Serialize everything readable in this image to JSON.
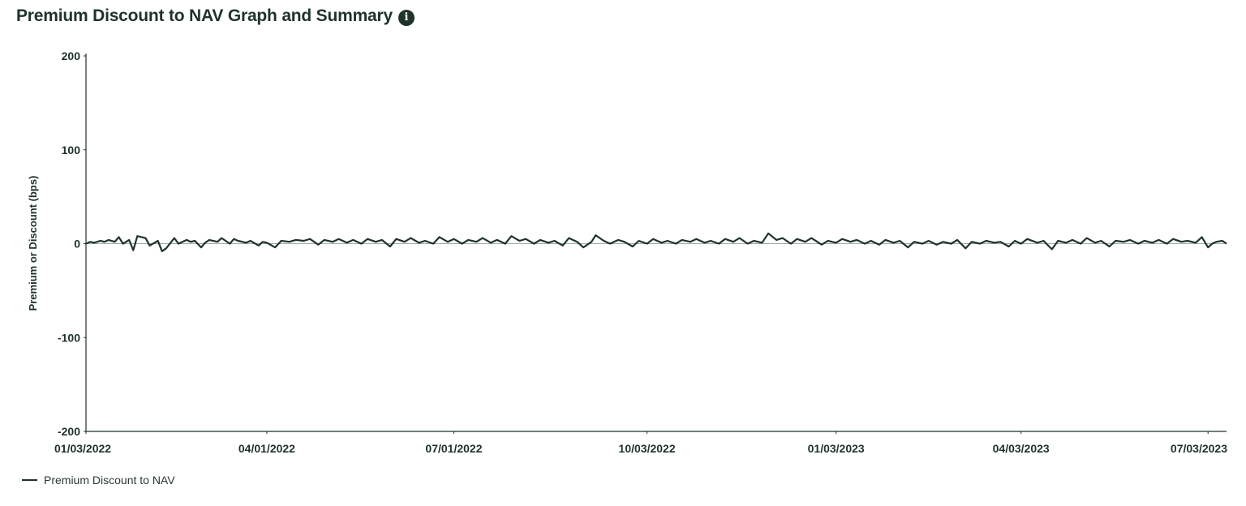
{
  "header": {
    "title": "Premium Discount to NAV Graph and Summary",
    "info_icon": "info-icon"
  },
  "colors": {
    "text": "#1f3329",
    "series_line": "#1f3329",
    "axis": "#1f3329",
    "zero_line": "#9aa7a0"
  },
  "legend": {
    "label": "Premium Discount to NAV"
  },
  "chart_data": {
    "type": "line",
    "ylabel": "Premium or Discount (bps)",
    "ylim": [
      -200,
      200
    ],
    "yticks": [
      "200",
      "100",
      "0",
      "-100",
      "-200"
    ],
    "xlim": [
      "2022-01-03",
      "2023-07-12"
    ],
    "xticks": [
      {
        "label": "01/03/2022",
        "date": "2022-01-03"
      },
      {
        "label": "04/01/2022",
        "date": "2022-04-01"
      },
      {
        "label": "07/01/2022",
        "date": "2022-07-01"
      },
      {
        "label": "10/03/2022",
        "date": "2022-10-03"
      },
      {
        "label": "01/03/2023",
        "date": "2023-01-03"
      },
      {
        "label": "04/03/2023",
        "date": "2023-04-03"
      },
      {
        "label": "07/03/2023",
        "date": "2023-07-03"
      }
    ],
    "grid": false,
    "legend_position": "bottom-left",
    "series": [
      {
        "name": "Premium Discount to NAV",
        "points": [
          [
            "2022-01-03",
            0
          ],
          [
            "2022-01-05",
            2
          ],
          [
            "2022-01-07",
            1
          ],
          [
            "2022-01-10",
            3
          ],
          [
            "2022-01-12",
            2
          ],
          [
            "2022-01-14",
            4
          ],
          [
            "2022-01-17",
            2
          ],
          [
            "2022-01-19",
            7
          ],
          [
            "2022-01-21",
            0
          ],
          [
            "2022-01-24",
            4
          ],
          [
            "2022-01-26",
            -7
          ],
          [
            "2022-01-28",
            8
          ],
          [
            "2022-02-01",
            6
          ],
          [
            "2022-02-03",
            -2
          ],
          [
            "2022-02-07",
            3
          ],
          [
            "2022-02-09",
            -8
          ],
          [
            "2022-02-11",
            -5
          ],
          [
            "2022-02-15",
            6
          ],
          [
            "2022-02-17",
            0
          ],
          [
            "2022-02-21",
            4
          ],
          [
            "2022-02-23",
            2
          ],
          [
            "2022-02-25",
            3
          ],
          [
            "2022-02-28",
            -4
          ],
          [
            "2022-03-02",
            1
          ],
          [
            "2022-03-04",
            4
          ],
          [
            "2022-03-08",
            2
          ],
          [
            "2022-03-10",
            6
          ],
          [
            "2022-03-14",
            0
          ],
          [
            "2022-03-16",
            5
          ],
          [
            "2022-03-18",
            3
          ],
          [
            "2022-03-22",
            1
          ],
          [
            "2022-03-24",
            3
          ],
          [
            "2022-03-28",
            -2
          ],
          [
            "2022-03-30",
            2
          ],
          [
            "2022-04-01",
            1
          ],
          [
            "2022-04-05",
            -4
          ],
          [
            "2022-04-08",
            3
          ],
          [
            "2022-04-12",
            2
          ],
          [
            "2022-04-15",
            4
          ],
          [
            "2022-04-19",
            3
          ],
          [
            "2022-04-22",
            5
          ],
          [
            "2022-04-26",
            -1
          ],
          [
            "2022-04-29",
            4
          ],
          [
            "2022-05-03",
            2
          ],
          [
            "2022-05-06",
            5
          ],
          [
            "2022-05-10",
            1
          ],
          [
            "2022-05-13",
            4
          ],
          [
            "2022-05-17",
            0
          ],
          [
            "2022-05-20",
            5
          ],
          [
            "2022-05-24",
            2
          ],
          [
            "2022-05-27",
            4
          ],
          [
            "2022-05-31",
            -3
          ],
          [
            "2022-06-03",
            5
          ],
          [
            "2022-06-07",
            2
          ],
          [
            "2022-06-10",
            6
          ],
          [
            "2022-06-14",
            1
          ],
          [
            "2022-06-17",
            3
          ],
          [
            "2022-06-21",
            0
          ],
          [
            "2022-06-24",
            7
          ],
          [
            "2022-06-28",
            2
          ],
          [
            "2022-07-01",
            5
          ],
          [
            "2022-07-05",
            0
          ],
          [
            "2022-07-08",
            4
          ],
          [
            "2022-07-12",
            2
          ],
          [
            "2022-07-15",
            6
          ],
          [
            "2022-07-19",
            1
          ],
          [
            "2022-07-22",
            4
          ],
          [
            "2022-07-26",
            0
          ],
          [
            "2022-07-29",
            8
          ],
          [
            "2022-08-02",
            3
          ],
          [
            "2022-08-05",
            5
          ],
          [
            "2022-08-09",
            0
          ],
          [
            "2022-08-12",
            4
          ],
          [
            "2022-08-16",
            1
          ],
          [
            "2022-08-19",
            3
          ],
          [
            "2022-08-23",
            -2
          ],
          [
            "2022-08-26",
            6
          ],
          [
            "2022-08-30",
            2
          ],
          [
            "2022-09-02",
            -4
          ],
          [
            "2022-09-06",
            2
          ],
          [
            "2022-09-08",
            9
          ],
          [
            "2022-09-12",
            3
          ],
          [
            "2022-09-15",
            0
          ],
          [
            "2022-09-19",
            4
          ],
          [
            "2022-09-22",
            2
          ],
          [
            "2022-09-26",
            -3
          ],
          [
            "2022-09-29",
            3
          ],
          [
            "2022-10-03",
            0
          ],
          [
            "2022-10-06",
            5
          ],
          [
            "2022-10-10",
            1
          ],
          [
            "2022-10-13",
            3
          ],
          [
            "2022-10-17",
            0
          ],
          [
            "2022-10-20",
            4
          ],
          [
            "2022-10-24",
            2
          ],
          [
            "2022-10-27",
            5
          ],
          [
            "2022-10-31",
            1
          ],
          [
            "2022-11-03",
            3
          ],
          [
            "2022-11-07",
            0
          ],
          [
            "2022-11-10",
            5
          ],
          [
            "2022-11-14",
            2
          ],
          [
            "2022-11-17",
            6
          ],
          [
            "2022-11-21",
            0
          ],
          [
            "2022-11-24",
            3
          ],
          [
            "2022-11-28",
            1
          ],
          [
            "2022-12-01",
            11
          ],
          [
            "2022-12-05",
            4
          ],
          [
            "2022-12-08",
            6
          ],
          [
            "2022-12-12",
            0
          ],
          [
            "2022-12-15",
            5
          ],
          [
            "2022-12-19",
            2
          ],
          [
            "2022-12-22",
            6
          ],
          [
            "2022-12-27",
            -1
          ],
          [
            "2022-12-30",
            3
          ],
          [
            "2023-01-03",
            1
          ],
          [
            "2023-01-06",
            5
          ],
          [
            "2023-01-10",
            2
          ],
          [
            "2023-01-13",
            4
          ],
          [
            "2023-01-17",
            0
          ],
          [
            "2023-01-20",
            3
          ],
          [
            "2023-01-24",
            -1
          ],
          [
            "2023-01-27",
            4
          ],
          [
            "2023-01-31",
            1
          ],
          [
            "2023-02-03",
            3
          ],
          [
            "2023-02-07",
            -4
          ],
          [
            "2023-02-10",
            2
          ],
          [
            "2023-02-14",
            0
          ],
          [
            "2023-02-17",
            3
          ],
          [
            "2023-02-21",
            -1
          ],
          [
            "2023-02-24",
            2
          ],
          [
            "2023-02-28",
            0
          ],
          [
            "2023-03-03",
            4
          ],
          [
            "2023-03-07",
            -5
          ],
          [
            "2023-03-10",
            2
          ],
          [
            "2023-03-14",
            0
          ],
          [
            "2023-03-17",
            3
          ],
          [
            "2023-03-21",
            1
          ],
          [
            "2023-03-24",
            2
          ],
          [
            "2023-03-28",
            -3
          ],
          [
            "2023-03-31",
            3
          ],
          [
            "2023-04-03",
            0
          ],
          [
            "2023-04-06",
            5
          ],
          [
            "2023-04-11",
            1
          ],
          [
            "2023-04-14",
            3
          ],
          [
            "2023-04-18",
            -6
          ],
          [
            "2023-04-21",
            3
          ],
          [
            "2023-04-25",
            1
          ],
          [
            "2023-04-28",
            4
          ],
          [
            "2023-05-02",
            0
          ],
          [
            "2023-05-05",
            6
          ],
          [
            "2023-05-09",
            1
          ],
          [
            "2023-05-12",
            3
          ],
          [
            "2023-05-16",
            -3
          ],
          [
            "2023-05-19",
            3
          ],
          [
            "2023-05-23",
            2
          ],
          [
            "2023-05-26",
            4
          ],
          [
            "2023-05-30",
            0
          ],
          [
            "2023-06-02",
            3
          ],
          [
            "2023-06-06",
            1
          ],
          [
            "2023-06-09",
            4
          ],
          [
            "2023-06-13",
            0
          ],
          [
            "2023-06-16",
            5
          ],
          [
            "2023-06-20",
            2
          ],
          [
            "2023-06-23",
            3
          ],
          [
            "2023-06-27",
            1
          ],
          [
            "2023-06-30",
            7
          ],
          [
            "2023-07-03",
            -4
          ],
          [
            "2023-07-05",
            0
          ],
          [
            "2023-07-07",
            2
          ],
          [
            "2023-07-10",
            3
          ],
          [
            "2023-07-12",
            0
          ]
        ]
      }
    ]
  }
}
